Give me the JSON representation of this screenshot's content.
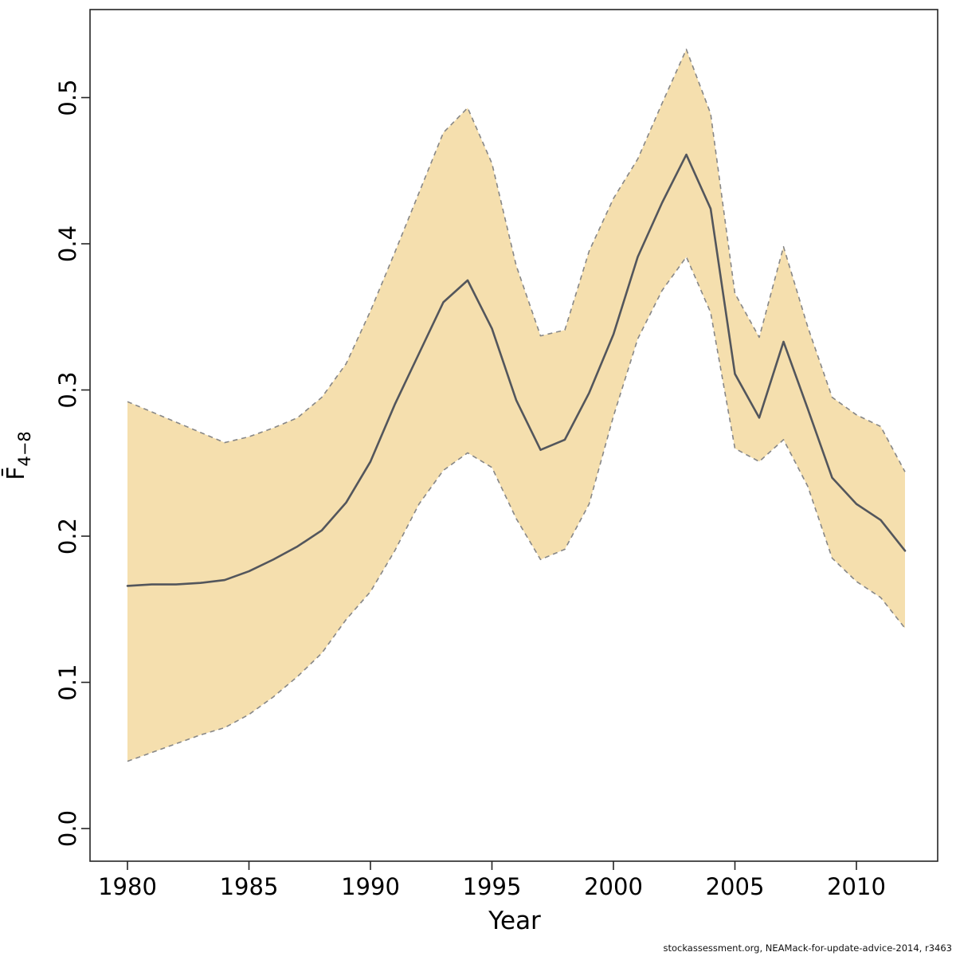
{
  "chart_data": {
    "type": "line",
    "title": "",
    "xlabel": "Year",
    "ylabel_base": "F̄",
    "ylabel_sub": "4−8",
    "grid": false,
    "legend": "none",
    "xlim": [
      1978.4,
      2013.4
    ],
    "ylim": [
      -0.022,
      0.561
    ],
    "x": [
      1980,
      1981,
      1982,
      1983,
      1984,
      1985,
      1986,
      1987,
      1988,
      1989,
      1990,
      1991,
      1992,
      1993,
      1994,
      1995,
      1996,
      1997,
      1998,
      1999,
      2000,
      2001,
      2002,
      2003,
      2004,
      2005,
      2006,
      2007,
      2008,
      2009,
      2010,
      2011,
      2012
    ],
    "series": [
      {
        "name": "estimate",
        "values": [
          0.166,
          0.167,
          0.167,
          0.168,
          0.17,
          0.176,
          0.184,
          0.193,
          0.204,
          0.223,
          0.251,
          0.29,
          0.325,
          0.36,
          0.375,
          0.342,
          0.293,
          0.259,
          0.266,
          0.298,
          0.338,
          0.391,
          0.428,
          0.461,
          0.424,
          0.311,
          0.281,
          0.333,
          0.287,
          0.24,
          0.222,
          0.211,
          0.19
        ]
      },
      {
        "name": "ci-upper",
        "values": [
          0.292,
          0.285,
          0.278,
          0.271,
          0.264,
          0.268,
          0.274,
          0.281,
          0.295,
          0.318,
          0.354,
          0.394,
          0.435,
          0.476,
          0.493,
          0.455,
          0.385,
          0.337,
          0.341,
          0.395,
          0.431,
          0.458,
          0.496,
          0.533,
          0.489,
          0.366,
          0.336,
          0.398,
          0.343,
          0.295,
          0.283,
          0.275,
          0.244
        ]
      },
      {
        "name": "ci-lower",
        "values": [
          0.046,
          0.052,
          0.058,
          0.064,
          0.069,
          0.078,
          0.09,
          0.104,
          0.12,
          0.143,
          0.162,
          0.19,
          0.222,
          0.245,
          0.257,
          0.247,
          0.212,
          0.184,
          0.191,
          0.222,
          0.282,
          0.335,
          0.368,
          0.391,
          0.353,
          0.26,
          0.251,
          0.266,
          0.234,
          0.185,
          0.169,
          0.158,
          0.137
        ]
      }
    ],
    "xticks": {
      "values": [
        1980,
        1985,
        1990,
        1995,
        2000,
        2005,
        2010
      ],
      "labels": [
        "1980",
        "1985",
        "1990",
        "1995",
        "2000",
        "2005",
        "2010"
      ]
    },
    "yticks": {
      "values": [
        0.0,
        0.1,
        0.2,
        0.3,
        0.4,
        0.5
      ],
      "labels": [
        "0.0",
        "0.1",
        "0.2",
        "0.3",
        "0.4",
        "0.5"
      ]
    },
    "colors": {
      "band_fill": "#f5dfae",
      "band_edge": "#878787",
      "estimate_line": "#53565c",
      "axis": "#242424",
      "text": "#000000"
    }
  },
  "footer": {
    "credit": "stockassessment.org, NEAMack-for-update-advice-2014, r3463"
  }
}
